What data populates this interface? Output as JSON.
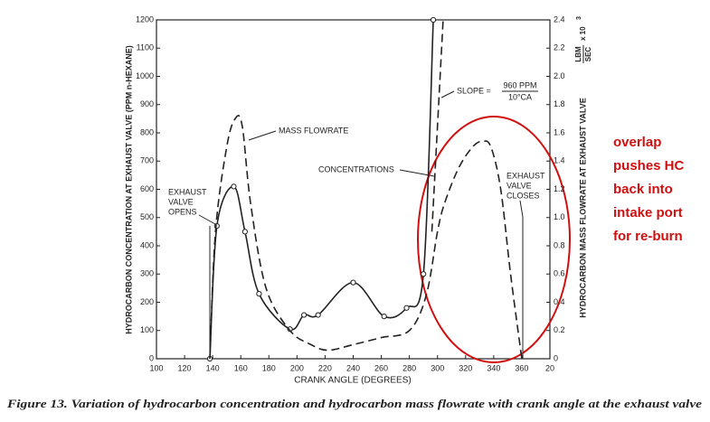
{
  "chart_data": {
    "type": "line",
    "x_label": "CRANK ANGLE (DEGREES)",
    "y_label": "HYDROCARBON  CONCENTRATION  AT EXHAUST VALVE  (PPM n-HEXANE)",
    "y2_label": "HYDROCARBON  MASS FLOWRATE  AT  EXHAUST VALVE",
    "y2_unit_top": "LBM",
    "y2_unit_bottom": "SEC",
    "y2_unit_factor": "x 10",
    "y2_unit_exp": "3",
    "xlim": [
      100,
      380
    ],
    "xticks": [
      100,
      120,
      140,
      160,
      180,
      200,
      220,
      240,
      260,
      280,
      300,
      320,
      340,
      360,
      {
        "value": 380,
        "label": "20"
      }
    ],
    "ylim": [
      0,
      1200
    ],
    "yticks": [
      0,
      100,
      200,
      300,
      400,
      500,
      600,
      700,
      800,
      900,
      1000,
      1100,
      1200
    ],
    "y2lim": [
      0,
      2.4
    ],
    "y2ticks": [
      0,
      0.2,
      0.4,
      0.6,
      0.8,
      {
        "value": 1,
        "label": "1.0"
      },
      1.2,
      1.4,
      1.6,
      1.8,
      {
        "value": 2,
        "label": "2.0"
      },
      2.2,
      2.4
    ],
    "series": [
      {
        "color": "#222222",
        "style": "solid",
        "markers": true,
        "x": [
          138,
          143,
          155,
          163,
          173,
          195,
          205,
          215,
          240,
          262,
          278,
          290,
          297
        ],
        "values": [
          0,
          470,
          610,
          450,
          230,
          105,
          155,
          155,
          270,
          150,
          180,
          300,
          1200
        ]
      },
      {
        "color": "#222222",
        "style": "dashed",
        "axis": "y2",
        "x": [
          138,
          142,
          150,
          156,
          161,
          167,
          178,
          195,
          210,
          222,
          240,
          260,
          280,
          292,
          300,
          305,
          315,
          325,
          332,
          338,
          345,
          352,
          360
        ],
        "values": [
          0,
          0.9,
          1.5,
          1.7,
          1.65,
          1.1,
          0.5,
          0.2,
          0.1,
          0.06,
          0.1,
          0.15,
          0.2,
          0.45,
          0.9,
          1.1,
          1.35,
          1.5,
          1.54,
          1.5,
          1.2,
          0.6,
          0
        ]
      },
      {
        "color": "#222222",
        "style": "dashed",
        "axis": "y2",
        "x": [
          296,
          304
        ],
        "values": [
          0.9,
          2.4
        ]
      }
    ],
    "annotations": {
      "mass_flowrate": "MASS  FLOWRATE",
      "concentrations": "CONCENTRATIONS",
      "opens": [
        "EXHAUST",
        "VALVE",
        "OPENS"
      ],
      "closes": [
        "EXHAUST",
        "VALVE",
        "CLOSES"
      ],
      "slope": "SLOPE =",
      "slope_top": "960 PPM",
      "slope_bottom": "10°CA"
    },
    "note": [
      "overlap",
      "pushes HC",
      "back into",
      "intake port",
      "for re-burn"
    ],
    "caption": "Figure 13. Variation of hydrocarbon concentration and hydrocarbon mass flowrate with crank angle at the exhaust valve"
  }
}
